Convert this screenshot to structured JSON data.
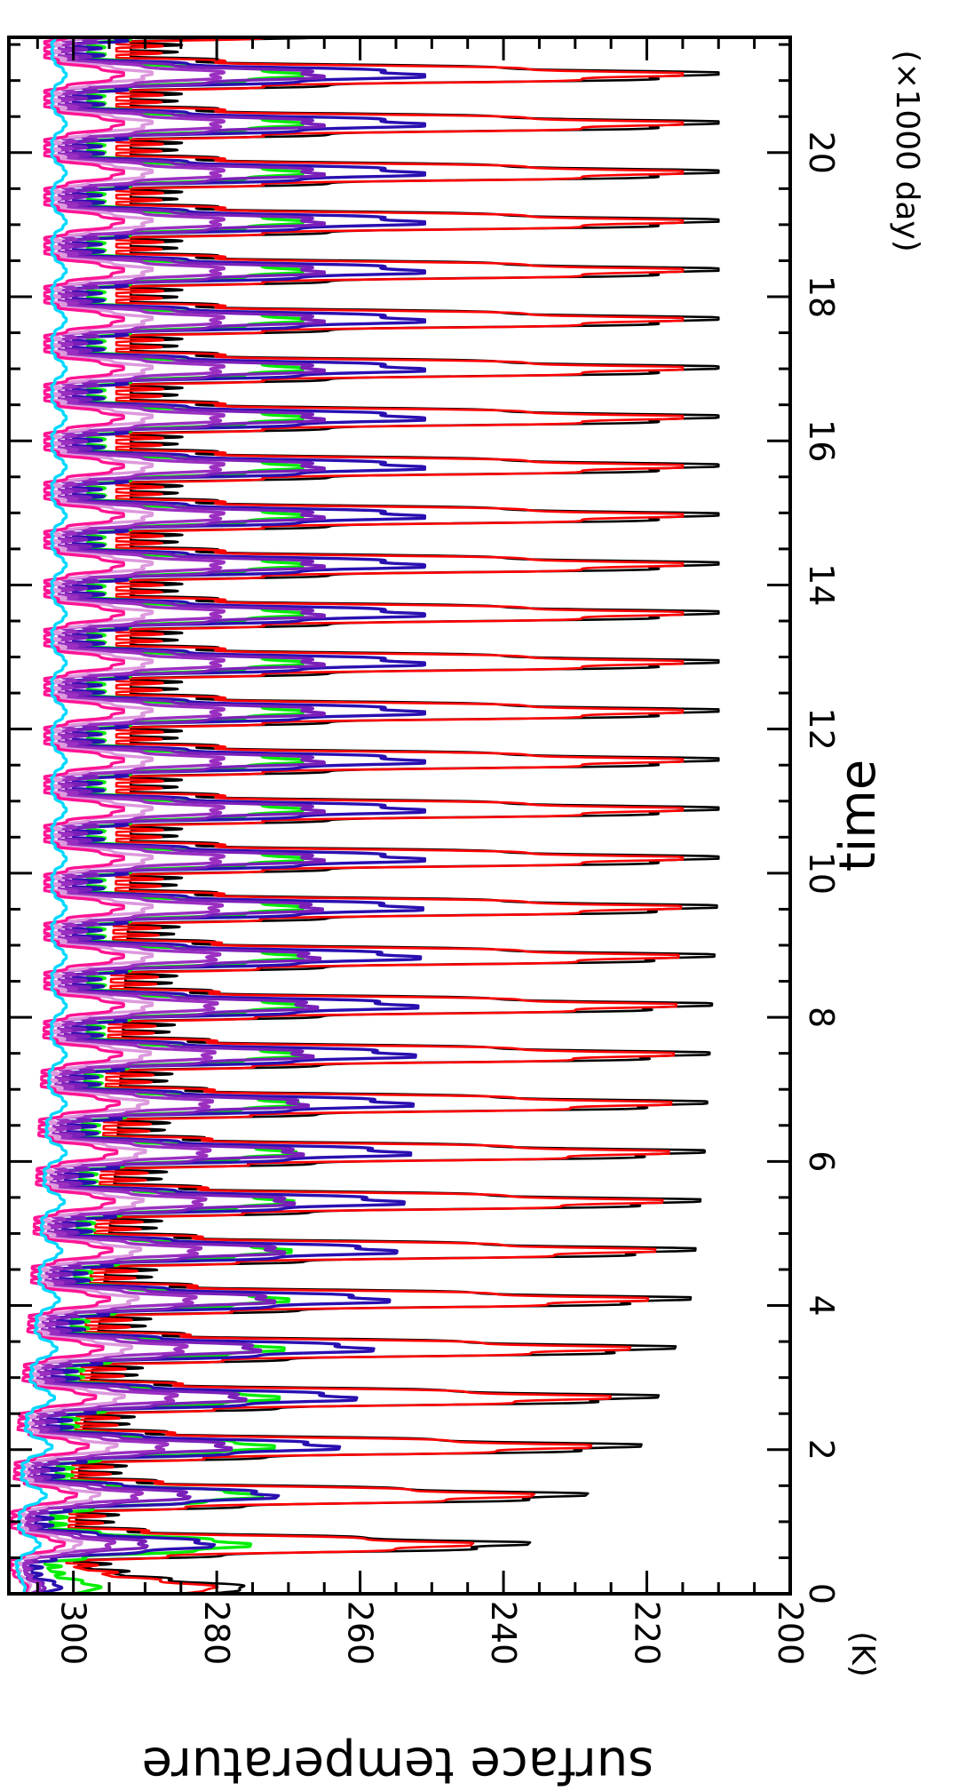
{
  "chart_data": {
    "type": "line",
    "title": "",
    "xlabel": "time",
    "x_unit_label": "(×1000 day)",
    "ylabel": "surface temperature",
    "y_unit_label": "(K)",
    "xlim": [
      0,
      21.6
    ],
    "ylim": [
      200,
      309
    ],
    "x_ticks": [
      0,
      2,
      4,
      6,
      8,
      10,
      12,
      14,
      16,
      18,
      20
    ],
    "y_ticks": [
      200,
      220,
      240,
      260,
      280,
      300
    ],
    "x_minor_step": 0.5,
    "y_minor_step": 5,
    "orientation": "rotated 90 degrees clockwise",
    "grid": false,
    "legend": "none",
    "cycle_period_kday": 0.68,
    "series": [
      {
        "color": "#000000",
        "x": [
          0,
          0.4,
          2,
          4,
          6,
          8,
          10,
          12,
          14,
          16,
          18,
          20,
          21.6
        ],
        "upper": [
          281,
          300,
          299,
          296,
          294,
          293,
          292,
          292,
          292,
          292,
          292,
          292,
          292
        ],
        "lower": [
          281,
          240,
          221,
          214,
          212,
          211,
          210,
          210,
          210,
          210,
          210,
          210,
          210
        ]
      },
      {
        "color": "#ff0000",
        "x": [
          0,
          0.4,
          2,
          4,
          6,
          8,
          10,
          12,
          14,
          16,
          18,
          20,
          21.6
        ],
        "upper": [
          285,
          301,
          300,
          298,
          296,
          295,
          294,
          294,
          294,
          294,
          294,
          294,
          294
        ],
        "lower": [
          285,
          248,
          228,
          220,
          217,
          216,
          215,
          215,
          215,
          215,
          215,
          215,
          215
        ]
      },
      {
        "color": "#00ee00",
        "x": [
          0,
          0.4,
          2,
          4,
          6,
          8,
          10,
          12,
          14,
          16,
          18,
          20,
          21.6
        ],
        "upper": [
          300,
          304,
          302,
          300,
          299,
          298,
          298,
          298,
          298,
          298,
          298,
          298,
          298
        ],
        "lower": [
          300,
          276,
          272,
          270,
          269,
          268,
          268,
          268,
          268,
          268,
          268,
          268,
          268
        ]
      },
      {
        "color": "#2a0fb0",
        "x": [
          0,
          0.4,
          2,
          4,
          6,
          8,
          10,
          12,
          14,
          16,
          18,
          20,
          21.6
        ],
        "upper": [
          305,
          306,
          304,
          302,
          301,
          300,
          300,
          300,
          300,
          300,
          300,
          300,
          300
        ],
        "lower": [
          305,
          284,
          263,
          256,
          253,
          252,
          251,
          251,
          251,
          251,
          251,
          251,
          251
        ]
      },
      {
        "color": "#7a1fb8",
        "x": [
          0,
          0.4,
          2,
          4,
          6,
          8,
          10,
          12,
          14,
          16,
          18,
          20,
          21.6
        ],
        "upper": [
          306,
          307,
          305,
          303,
          302,
          301,
          301,
          301,
          301,
          301,
          301,
          301,
          301
        ],
        "lower": [
          306,
          292,
          278,
          272,
          268,
          266,
          265,
          265,
          265,
          265,
          265,
          265,
          265
        ]
      },
      {
        "color": "#9a2fc0",
        "x": [
          0,
          0.4,
          2,
          4,
          6,
          8,
          10,
          12,
          14,
          16,
          18,
          20,
          21.6
        ],
        "upper": [
          306,
          307,
          306,
          304,
          303,
          302,
          302,
          302,
          302,
          302,
          302,
          302,
          302
        ],
        "lower": [
          306,
          296,
          287,
          283,
          281,
          280,
          279,
          279,
          279,
          279,
          279,
          279,
          279
        ]
      },
      {
        "color": "#dd99dd",
        "x": [
          0,
          0.4,
          2,
          4,
          6,
          8,
          10,
          12,
          14,
          16,
          18,
          20,
          21.6
        ],
        "upper": [
          307,
          308,
          307,
          305,
          304,
          303,
          303,
          303,
          303,
          303,
          303,
          303,
          303
        ],
        "lower": [
          307,
          300,
          294,
          291,
          290,
          289,
          289,
          289,
          289,
          289,
          289,
          289,
          289
        ]
      },
      {
        "color": "#ff1493",
        "x": [
          0,
          0.4,
          2,
          4,
          6,
          8,
          10,
          12,
          14,
          16,
          18,
          20,
          21.6
        ],
        "upper": [
          307,
          309,
          308,
          306,
          305,
          304,
          304,
          304,
          304,
          304,
          304,
          304,
          304
        ],
        "lower": [
          307,
          302,
          298,
          295,
          294,
          293,
          293,
          293,
          293,
          293,
          293,
          293,
          293
        ]
      },
      {
        "color": "#00d8ff",
        "x": [
          0,
          0.4,
          2,
          4,
          6,
          8,
          10,
          12,
          14,
          16,
          18,
          20,
          21.6
        ],
        "upper": [
          307,
          308,
          307,
          305,
          304,
          303,
          303,
          303,
          303,
          303,
          303,
          303,
          303
        ],
        "lower": [
          307,
          305,
          303,
          302,
          301,
          301,
          301,
          301,
          301,
          301,
          301,
          301,
          301
        ]
      }
    ]
  }
}
